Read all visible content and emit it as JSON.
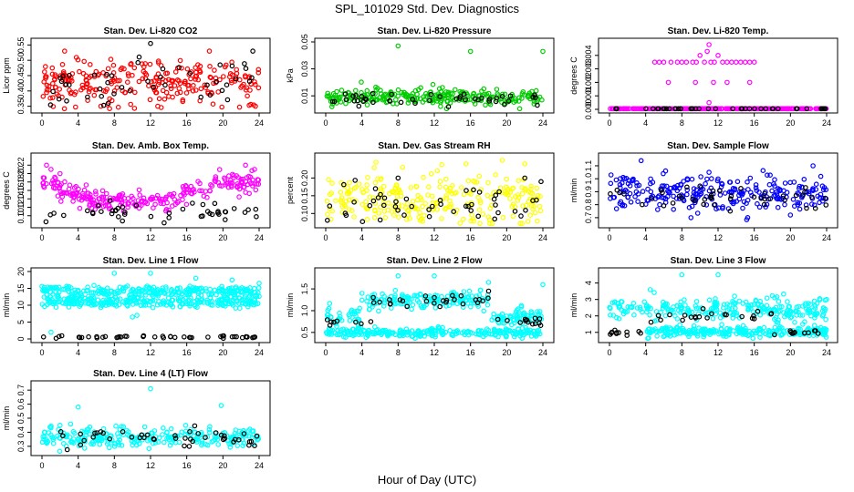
{
  "figure": {
    "title": "SPL_101029  Std. Dev. Diagnostics",
    "xlabel": "Hour of Day (UTC)"
  },
  "chart_data": [
    {
      "type": "scatter",
      "title": "Stan. Dev. Li-820 CO2",
      "ylabel": "Licor ppm",
      "xlim": [
        0,
        24
      ],
      "ylim": [
        0.34,
        0.56
      ],
      "xticks": [
        "0",
        "4",
        "8",
        "12",
        "16",
        "20",
        "24"
      ],
      "yticks": [
        "0.35",
        "0.40",
        "0.45",
        "0.50",
        "0.55"
      ],
      "series": [
        {
          "color": "#ff0000",
          "level_mean": 0.43,
          "spread": 0.04,
          "x_range": [
            0,
            24
          ],
          "outliers": [
            [
              2.5,
              0.53
            ],
            [
              6.5,
              0.35
            ],
            [
              12.8,
              0.35
            ],
            [
              18.5,
              0.53
            ],
            [
              23.6,
              0.35
            ]
          ]
        },
        {
          "color": "#000000",
          "level_mean": 0.43,
          "spread": 0.035,
          "x_range": [
            0,
            24
          ],
          "outliers": [
            [
              12.0,
              0.555
            ],
            [
              23.3,
              0.53
            ]
          ]
        }
      ]
    },
    {
      "type": "scatter",
      "title": "Stan. Dev. Li-820 Pressure",
      "ylabel": "kPa",
      "xlim": [
        0,
        24
      ],
      "ylim": [
        0,
        0.05
      ],
      "xticks": [
        "0",
        "4",
        "8",
        "12",
        "16",
        "20",
        "24"
      ],
      "yticks": [
        "0.01",
        "0.03",
        "0.05"
      ],
      "series": [
        {
          "color": "#00cc00",
          "level_mean": 0.009,
          "spread": 0.003,
          "x_range": [
            0,
            24
          ],
          "outliers": [
            [
              8.0,
              0.047
            ],
            [
              16.0,
              0.043
            ],
            [
              24.0,
              0.043
            ],
            [
              10.5,
              0.016
            ]
          ]
        },
        {
          "color": "#000000",
          "level_mean": 0.007,
          "spread": 0.002,
          "x_range": [
            0,
            24
          ],
          "outliers": []
        }
      ]
    },
    {
      "type": "scatter",
      "title": "Stan. Dev. Li-820 Temp.",
      "ylabel": "degrees C",
      "xlim": [
        0,
        24
      ],
      "ylim": [
        0,
        0.005
      ],
      "xticks": [
        "0",
        "4",
        "8",
        "12",
        "16",
        "20",
        "24"
      ],
      "yticks": [
        "0.000",
        "0.001",
        "0.002",
        "0.003",
        "0.004"
      ],
      "series": [
        {
          "color": "#ff00ff",
          "level_mean": 0.0,
          "spread": 0.0,
          "x_range": [
            0,
            24
          ],
          "outliers": [
            [
              5.0,
              0.0035
            ],
            [
              5.5,
              0.0035
            ],
            [
              6.0,
              0.0035
            ],
            [
              6.8,
              0.0035
            ],
            [
              7.5,
              0.0035
            ],
            [
              8.0,
              0.0035
            ],
            [
              8.5,
              0.0035
            ],
            [
              9.2,
              0.0035
            ],
            [
              9.6,
              0.0035
            ],
            [
              10.0,
              0.004
            ],
            [
              10.5,
              0.0035
            ],
            [
              10.8,
              0.0043
            ],
            [
              11.0,
              0.0048
            ],
            [
              11.2,
              0.0035
            ],
            [
              11.6,
              0.0035
            ],
            [
              12.0,
              0.004
            ],
            [
              12.5,
              0.0035
            ],
            [
              13.0,
              0.0035
            ],
            [
              13.5,
              0.0035
            ],
            [
              14.0,
              0.0035
            ],
            [
              14.5,
              0.0035
            ],
            [
              15.0,
              0.0035
            ],
            [
              15.5,
              0.0035
            ],
            [
              16.0,
              0.0035
            ],
            [
              6.5,
              0.002
            ],
            [
              9.5,
              0.002
            ],
            [
              11.5,
              0.002
            ],
            [
              13.0,
              0.002
            ],
            [
              15.5,
              0.002
            ],
            [
              11.0,
              0.0005
            ]
          ]
        },
        {
          "color": "#000000",
          "level_mean": 0.0,
          "spread": 0.0,
          "x_range": [
            0,
            24
          ],
          "outliers": []
        }
      ]
    },
    {
      "type": "scatter",
      "title": "Stan. Dev. Amb. Box Temp.",
      "ylabel": "degrees C",
      "xlim": [
        0,
        24
      ],
      "ylim": [
        0.08,
        0.24
      ],
      "xticks": [
        "0",
        "4",
        "8",
        "12",
        "16",
        "20",
        "24"
      ],
      "yticks": [
        "0.10",
        "0.12",
        "0.14",
        "0.16",
        "0.18",
        "0.20",
        "0.22"
      ],
      "series": [
        {
          "color": "#ff00ff",
          "level_mean": 0.15,
          "spread": 0.02,
          "x_range": [
            0,
            24
          ],
          "outliers": [
            [
              0.5,
              0.22
            ],
            [
              1.0,
              0.21
            ],
            [
              2.0,
              0.2
            ],
            [
              22.5,
              0.22
            ],
            [
              23.5,
              0.21
            ]
          ]
        },
        {
          "color": "#000000",
          "level_mean": 0.11,
          "spread": 0.012,
          "x_range": [
            0,
            24
          ],
          "outliers": []
        }
      ]
    },
    {
      "type": "scatter",
      "title": "Stan. Dev. Gas Stream RH",
      "ylabel": "percent",
      "xlim": [
        0,
        24
      ],
      "ylim": [
        0.07,
        0.26
      ],
      "xticks": [
        "0",
        "4",
        "8",
        "12",
        "16",
        "20",
        "24"
      ],
      "yticks": [
        "0.10",
        "0.15",
        "0.20"
      ],
      "series": [
        {
          "color": "#ffff00",
          "level_mean": 0.14,
          "spread": 0.035,
          "x_range": [
            0,
            24
          ],
          "outliers": [
            [
              8.5,
              0.23
            ],
            [
              15.5,
              0.24
            ],
            [
              19.5,
              0.25
            ],
            [
              22.0,
              0.24
            ]
          ]
        },
        {
          "color": "#000000",
          "level_mean": 0.12,
          "spread": 0.025,
          "x_range": [
            0,
            24
          ],
          "outliers": [
            [
              5.5,
              0.17
            ],
            [
              8.0,
              0.2
            ],
            [
              17.0,
              0.16
            ],
            [
              22.0,
              0.2
            ],
            [
              23.8,
              0.19
            ]
          ]
        }
      ]
    },
    {
      "type": "scatter",
      "title": "Stan. Dev. Sample Flow",
      "ylabel": "ml/min",
      "xlim": [
        0,
        24
      ],
      "ylim": [
        0.65,
        1.17
      ],
      "xticks": [
        "0",
        "4",
        "8",
        "12",
        "16",
        "20",
        "24"
      ],
      "yticks": [
        "0.7",
        "0.8",
        "0.9",
        "1.0",
        "1.1"
      ],
      "series": [
        {
          "color": "#0000ff",
          "level_mean": 0.88,
          "spread": 0.07,
          "x_range": [
            0,
            24
          ],
          "outliers": [
            [
              3.5,
              1.14
            ],
            [
              9.0,
              0.7
            ],
            [
              11.0,
              1.05
            ],
            [
              20.0,
              0.72
            ],
            [
              22.5,
              1.1
            ]
          ]
        },
        {
          "color": "#000000",
          "level_mean": 0.86,
          "spread": 0.05,
          "x_range": [
            0,
            24
          ],
          "outliers": []
        }
      ]
    },
    {
      "type": "scatter",
      "title": "Stan. Dev. Line 1 Flow",
      "ylabel": "ml/min",
      "xlim": [
        0,
        24
      ],
      "ylim": [
        0,
        20
      ],
      "xticks": [
        "0",
        "4",
        "8",
        "12",
        "16",
        "20",
        "24"
      ],
      "yticks": [
        "0",
        "5",
        "10",
        "15",
        "20"
      ],
      "series": [
        {
          "color": "#00ffff",
          "level_mean": 14,
          "spread": 0.9,
          "x_range": [
            0,
            24
          ],
          "outliers": [
            [
              8.0,
              19.5
            ],
            [
              12.0,
              19.5
            ],
            [
              17.0,
              18.0
            ],
            [
              21.0,
              17.5
            ],
            [
              24.0,
              16.5
            ],
            [
              10.0,
              6.5
            ],
            [
              10.5,
              7.0
            ],
            [
              1.0,
              2.0
            ]
          ]
        },
        {
          "color": "#00ffff",
          "level_mean": 11,
          "spread": 0.7,
          "x_range": [
            0,
            24
          ],
          "outliers": []
        },
        {
          "color": "#000000",
          "level_mean": 0.6,
          "spread": 0.15,
          "x_range": [
            0,
            24
          ],
          "outliers": []
        }
      ]
    },
    {
      "type": "scatter",
      "title": "Stan. Dev. Line 2 Flow",
      "ylabel": "ml/min",
      "xlim": [
        0,
        24
      ],
      "ylim": [
        0.35,
        1.9
      ],
      "xticks": [
        "0",
        "4",
        "8",
        "12",
        "16",
        "20",
        "24"
      ],
      "yticks": [
        "0.5",
        "1.0",
        "1.5"
      ],
      "series": [
        {
          "color": "#00ffff",
          "level_mean": 1.05,
          "spread": 0.18,
          "x_range": [
            0,
            24
          ],
          "outliers": [
            [
              8.0,
              1.8
            ],
            [
              12.0,
              1.8
            ],
            [
              18.0,
              1.65
            ],
            [
              24.0,
              1.6
            ],
            [
              4.0,
              1.4
            ]
          ]
        },
        {
          "color": "#00ffff",
          "level_mean": 0.5,
          "spread": 0.05,
          "x_range": [
            0,
            24
          ],
          "outliers": []
        },
        {
          "color": "#000000",
          "level_mean": 0.75,
          "spread": 0.06,
          "x_range": [
            0,
            24
          ],
          "outliers": [
            [
              12.0,
              1.3
            ],
            [
              14.0,
              1.35
            ],
            [
              18.0,
              1.45
            ]
          ]
        }
      ]
    },
    {
      "type": "scatter",
      "title": "Stan. Dev. Line 3 Flow",
      "ylabel": "ml/min",
      "xlim": [
        0,
        24
      ],
      "ylim": [
        0.6,
        4.7
      ],
      "xticks": [
        "0",
        "4",
        "8",
        "12",
        "16",
        "20",
        "24"
      ],
      "yticks": [
        "1",
        "2",
        "3",
        "4"
      ],
      "series": [
        {
          "color": "#00ffff",
          "level_mean": 2.4,
          "spread": 0.35,
          "x_range": [
            0,
            24
          ],
          "outliers": [
            [
              8.0,
              4.5
            ],
            [
              12.0,
              4.5
            ],
            [
              4.5,
              3.6
            ],
            [
              24.0,
              3.0
            ]
          ]
        },
        {
          "color": "#00ffff",
          "level_mean": 1.05,
          "spread": 0.15,
          "x_range": [
            4,
            24
          ],
          "outliers": []
        },
        {
          "color": "#000000",
          "level_mean": 1.5,
          "spread": 0.3,
          "x_range": [
            0,
            24
          ],
          "outliers": []
        }
      ]
    },
    {
      "type": "scatter",
      "title": "Stan. Dev. Line 4 (LT) Flow",
      "ylabel": "ml/min",
      "xlim": [
        0,
        24
      ],
      "ylim": [
        0.26,
        0.74
      ],
      "xticks": [
        "0",
        "4",
        "8",
        "12",
        "16",
        "20",
        "24"
      ],
      "yticks": [
        "0.3",
        "0.4",
        "0.5",
        "0.6",
        "0.7"
      ],
      "series": [
        {
          "color": "#00ffff",
          "level_mean": 0.36,
          "spread": 0.035,
          "x_range": [
            0,
            24
          ],
          "outliers": [
            [
              12.0,
              0.71
            ],
            [
              4.0,
              0.58
            ],
            [
              19.8,
              0.59
            ],
            [
              2.0,
              0.45
            ],
            [
              9.0,
              0.44
            ]
          ]
        },
        {
          "color": "#000000",
          "level_mean": 0.37,
          "spread": 0.03,
          "x_range": [
            0,
            24
          ],
          "outliers": []
        }
      ]
    }
  ]
}
